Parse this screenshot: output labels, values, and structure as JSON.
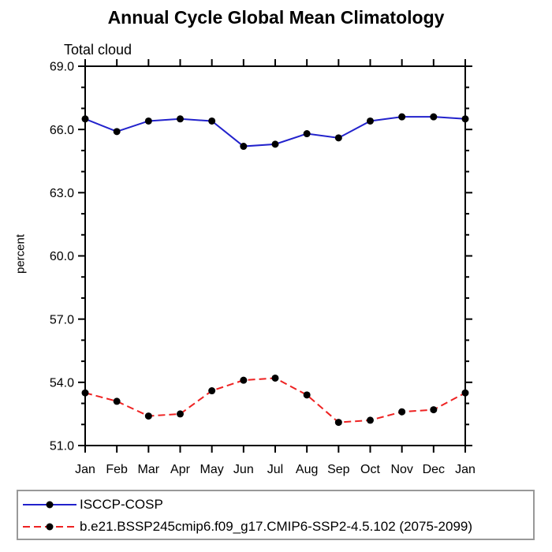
{
  "chart_data": {
    "type": "line",
    "title": "Annual Cycle Global Mean Climatology",
    "subtitle": "Total cloud",
    "ylabel": "percent",
    "xlabel": "",
    "categories": [
      "Jan",
      "Feb",
      "Mar",
      "Apr",
      "May",
      "Jun",
      "Jul",
      "Aug",
      "Sep",
      "Oct",
      "Nov",
      "Dec",
      "Jan"
    ],
    "ylim": [
      51.0,
      69.0
    ],
    "ytick_step": 3.0,
    "ytick_labels": [
      "51.0",
      "54.0",
      "57.0",
      "60.0",
      "63.0",
      "66.0",
      "69.0"
    ],
    "yminor_step": 1.0,
    "grid": false,
    "legend_position": "bottom",
    "axis_color": "#000000",
    "legend_border_color": "#999999",
    "series": [
      {
        "name": "ISCCP-COSP",
        "color": "#2222cc",
        "line_style": "solid",
        "marker": "filled-circle",
        "marker_color": "#000000",
        "values": [
          66.5,
          65.9,
          66.4,
          66.5,
          66.4,
          65.2,
          65.3,
          65.8,
          65.6,
          66.4,
          66.6,
          66.6,
          66.5
        ]
      },
      {
        "name": "b.e21.BSSP245cmip6.f09_g17.CMIP6-SSP2-4.5.102 (2075-2099)",
        "color": "#ee2222",
        "line_style": "dashed",
        "marker": "filled-circle",
        "marker_color": "#000000",
        "values": [
          53.5,
          53.1,
          52.4,
          52.5,
          53.6,
          54.1,
          54.2,
          53.4,
          52.1,
          52.2,
          52.6,
          52.7,
          53.5
        ]
      }
    ]
  }
}
